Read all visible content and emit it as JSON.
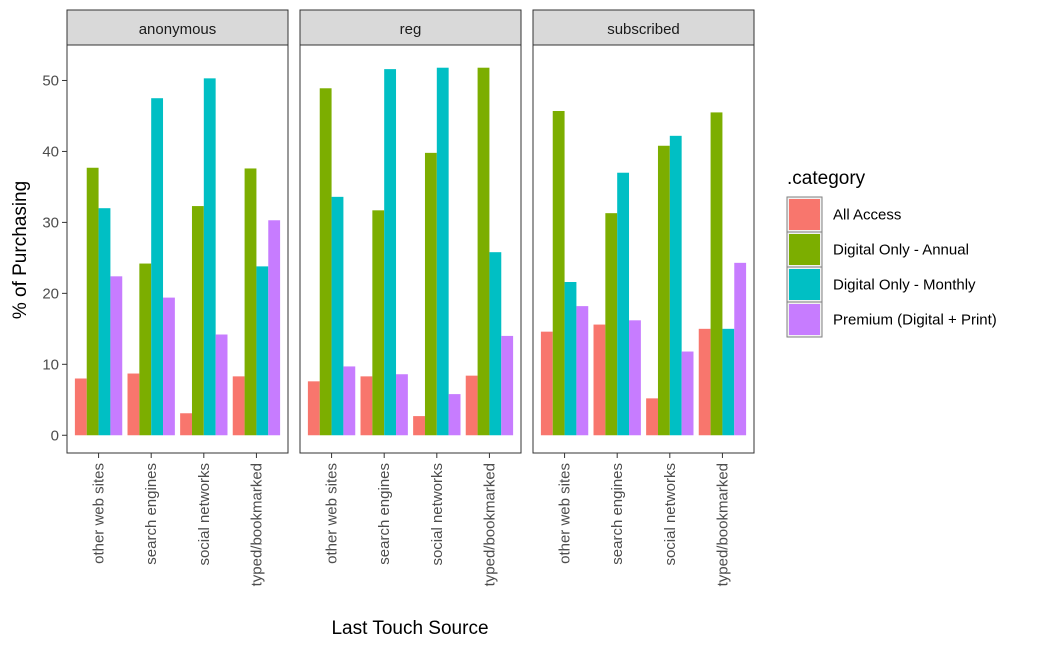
{
  "chart_data": {
    "type": "bar",
    "ylabel": "% of Purchasing",
    "xlabel": "Last Touch Source",
    "ylim": [
      -2.5,
      55
    ],
    "yticks": [
      0,
      10,
      20,
      30,
      40,
      50
    ],
    "grid": false,
    "legend_placement": "right",
    "legend_title": ".category",
    "categories": [
      "other web sites",
      "search engines",
      "social networks",
      "typed/bookmarked"
    ],
    "series": [
      {
        "name": "All Access",
        "color": "#F8766D"
      },
      {
        "name": "Digital Only - Annual",
        "color": "#7CAE00"
      },
      {
        "name": "Digital Only - Monthly",
        "color": "#00BFC4"
      },
      {
        "name": "Premium (Digital + Print)",
        "color": "#C77CFF"
      }
    ],
    "panels": [
      {
        "name": "anonymous",
        "values": [
          [
            8.0,
            37.7,
            32.0,
            22.4
          ],
          [
            8.7,
            24.2,
            47.5,
            19.4
          ],
          [
            3.1,
            32.3,
            50.3,
            14.2
          ],
          [
            8.3,
            37.6,
            23.8,
            30.3
          ]
        ]
      },
      {
        "name": "reg",
        "values": [
          [
            7.6,
            48.9,
            33.6,
            9.7
          ],
          [
            8.3,
            31.7,
            51.6,
            8.6
          ],
          [
            2.7,
            39.8,
            51.8,
            5.8
          ],
          [
            8.4,
            51.8,
            25.8,
            14.0
          ]
        ]
      },
      {
        "name": "subscribed",
        "values": [
          [
            14.6,
            45.7,
            21.6,
            18.2
          ],
          [
            15.6,
            31.3,
            37.0,
            16.2
          ],
          [
            5.2,
            40.8,
            42.2,
            11.8
          ],
          [
            15.0,
            45.5,
            15.0,
            24.3
          ]
        ]
      }
    ]
  }
}
